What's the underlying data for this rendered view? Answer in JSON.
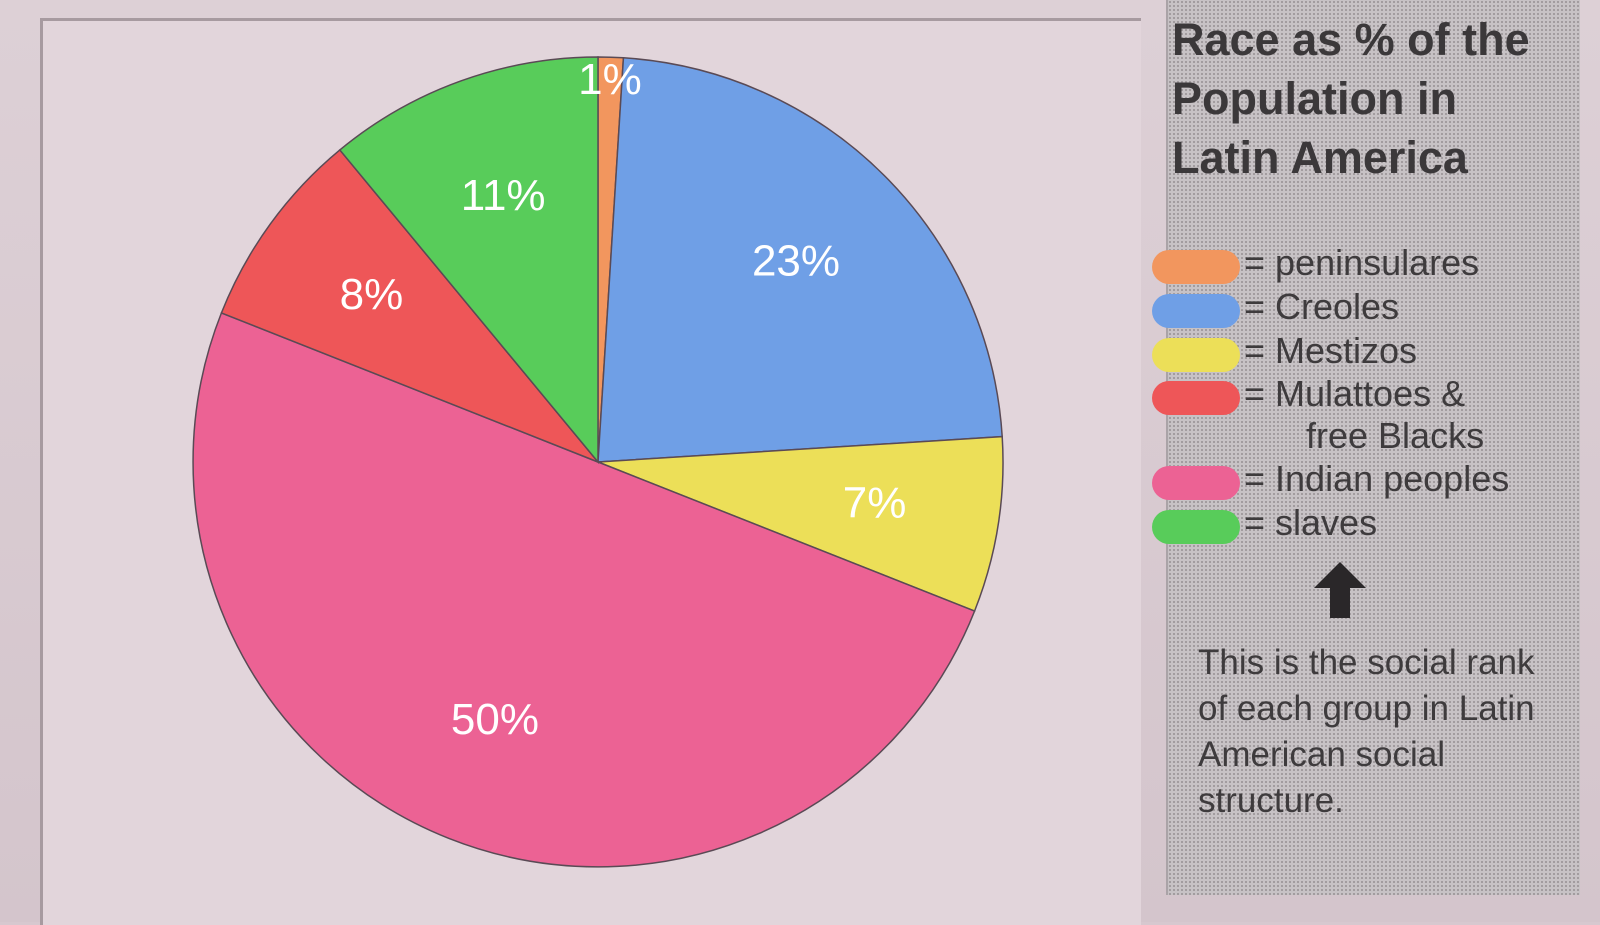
{
  "chart_data": {
    "type": "pie",
    "title": "Race as % of the Population in Latin America",
    "slices": [
      {
        "name": "peninsulares",
        "value": 1,
        "label": "1%",
        "color": "#f2965e"
      },
      {
        "name": "Creoles",
        "value": 23,
        "label": "23%",
        "color": "#6f9fe6"
      },
      {
        "name": "Mestizos",
        "value": 7,
        "label": "7%",
        "color": "#ecdf58"
      },
      {
        "name": "Indian peoples",
        "value": 50,
        "label": "50%",
        "color": "#ec6294"
      },
      {
        "name": "Mulattoes & free Blacks",
        "value": 8,
        "label": "8%",
        "color": "#ee5658"
      },
      {
        "name": "slaves",
        "value": 11,
        "label": "11%",
        "color": "#58cc5a"
      }
    ]
  },
  "legend": {
    "title": "Race as % of the Population in Latin America",
    "items": [
      {
        "text": "= peninsulares",
        "color": "#f2965e"
      },
      {
        "text": "= Creoles",
        "color": "#6f9fe6"
      },
      {
        "text": "= Mestizos",
        "color": "#ecdf58"
      },
      {
        "text": "= Mulattoes &",
        "continuation": "free Blacks",
        "color": "#ee5658"
      },
      {
        "text": "= Indian peoples",
        "color": "#ec6294"
      },
      {
        "text": "= slaves",
        "color": "#58cc5a"
      }
    ],
    "arrow_icon": "arrow-up-icon",
    "note": "This is the social rank of each group in Latin American social structure."
  }
}
